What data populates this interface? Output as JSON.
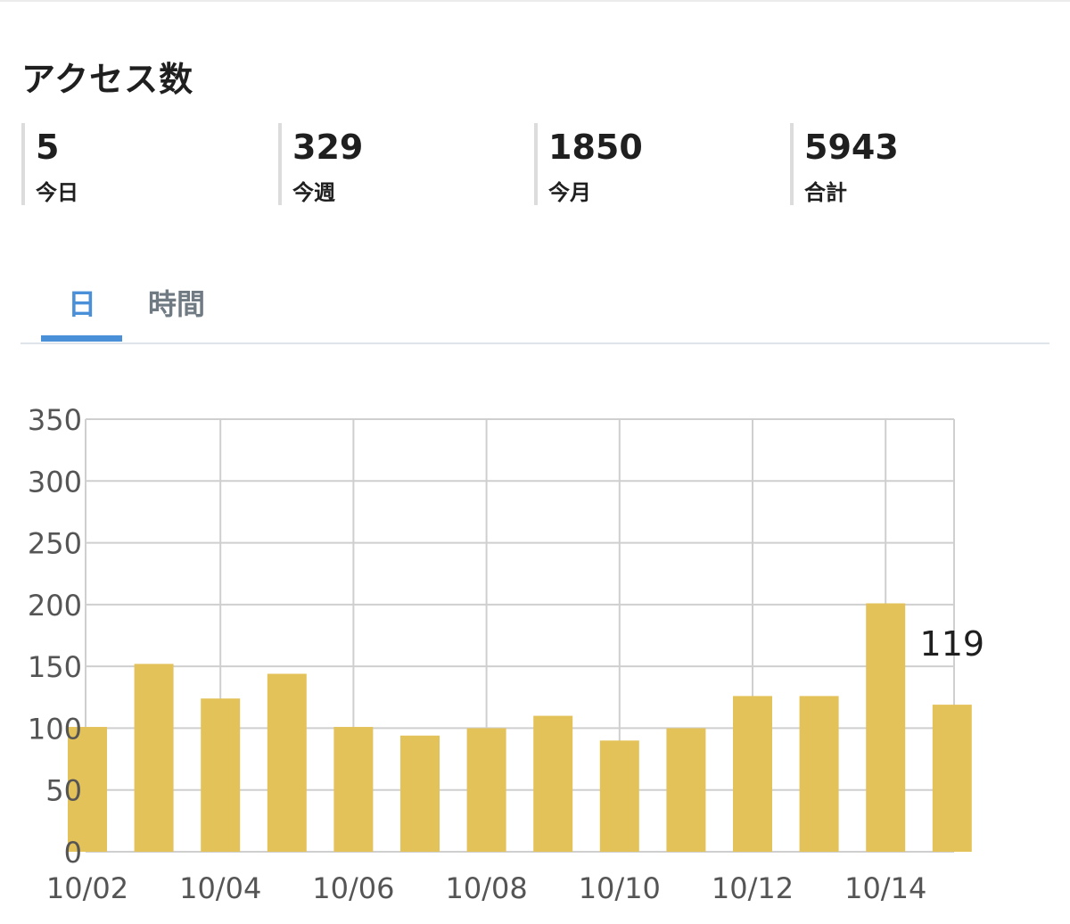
{
  "header": {
    "title": "アクセス数"
  },
  "stats": [
    {
      "value": "5",
      "label": "今日"
    },
    {
      "value": "329",
      "label": "今週"
    },
    {
      "value": "1850",
      "label": "今月"
    },
    {
      "value": "5943",
      "label": "合計"
    }
  ],
  "tabs": [
    {
      "label": "日",
      "active": true
    },
    {
      "label": "時間",
      "active": false
    }
  ],
  "colors": {
    "bar": "#e4c25a",
    "accent": "#4a90d9",
    "grid": "#cfcfcf"
  },
  "chart_data": {
    "type": "bar",
    "categories": [
      "10/02",
      "10/03",
      "10/04",
      "10/05",
      "10/06",
      "10/07",
      "10/08",
      "10/09",
      "10/10",
      "10/11",
      "10/12",
      "10/13",
      "10/14",
      "10/15"
    ],
    "x_tick_labels": [
      "10/02",
      "10/04",
      "10/06",
      "10/08",
      "10/10",
      "10/12",
      "10/14"
    ],
    "values": [
      101,
      152,
      124,
      144,
      101,
      94,
      100,
      110,
      90,
      100,
      126,
      126,
      201,
      119
    ],
    "ylim": [
      0,
      350
    ],
    "y_ticks": [
      0,
      50,
      100,
      150,
      200,
      250,
      300,
      350
    ],
    "annotation": {
      "category": "10/15",
      "text": "119"
    },
    "grid": true
  }
}
